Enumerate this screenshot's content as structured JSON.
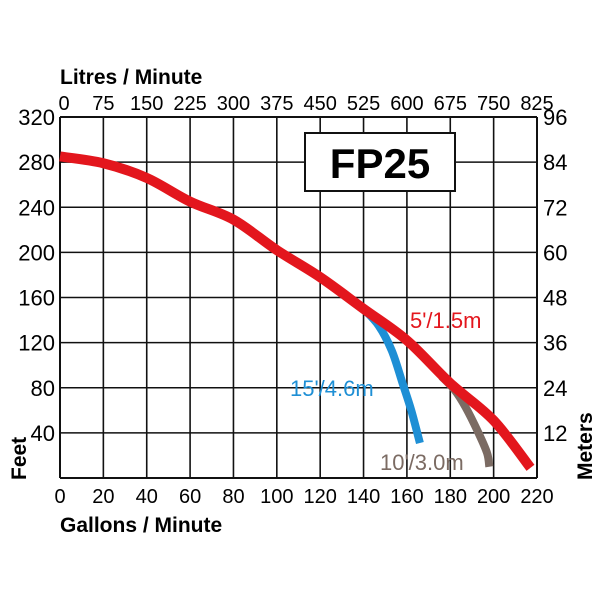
{
  "chart_data": {
    "type": "line",
    "title": "FP25",
    "xlabel": "Gallons / Minute",
    "x2label": "Litres / Minute",
    "ylabel": "Feet",
    "y2label": "Meters",
    "xlim": [
      0,
      220
    ],
    "ylim": [
      0,
      320
    ],
    "grid": true,
    "x_ticks": [
      "0",
      "20",
      "40",
      "60",
      "80",
      "100",
      "120",
      "140",
      "160",
      "180",
      "200",
      "220"
    ],
    "x2_ticks": [
      "0",
      "75",
      "150",
      "225",
      "300",
      "375",
      "450",
      "525",
      "600",
      "675",
      "750",
      "825"
    ],
    "y_ticks": [
      "40",
      "80",
      "120",
      "160",
      "200",
      "240",
      "280",
      "320"
    ],
    "y2_ticks": [
      "12",
      "24",
      "36",
      "48",
      "60",
      "72",
      "84",
      "96"
    ],
    "series": [
      {
        "name": "5'/1.5m",
        "color": "#e3161d",
        "x": [
          0,
          20,
          40,
          60,
          80,
          100,
          120,
          140,
          160,
          180,
          200,
          217
        ],
        "y": [
          285,
          279,
          266,
          245,
          229,
          202,
          178,
          150,
          122,
          84,
          51,
          9
        ]
      },
      {
        "name": "15'/4.6m",
        "color": "#1e8fd5",
        "x": [
          140,
          147,
          153,
          158,
          162,
          166
        ],
        "y": [
          150,
          135,
          113,
          84,
          60,
          31
        ]
      },
      {
        "name": "10'/3.0m",
        "color": "#7b6b63",
        "x": [
          176,
          182,
          187,
          193,
          197,
          198
        ],
        "y": [
          90,
          78,
          63,
          40,
          22,
          10
        ]
      }
    ]
  }
}
